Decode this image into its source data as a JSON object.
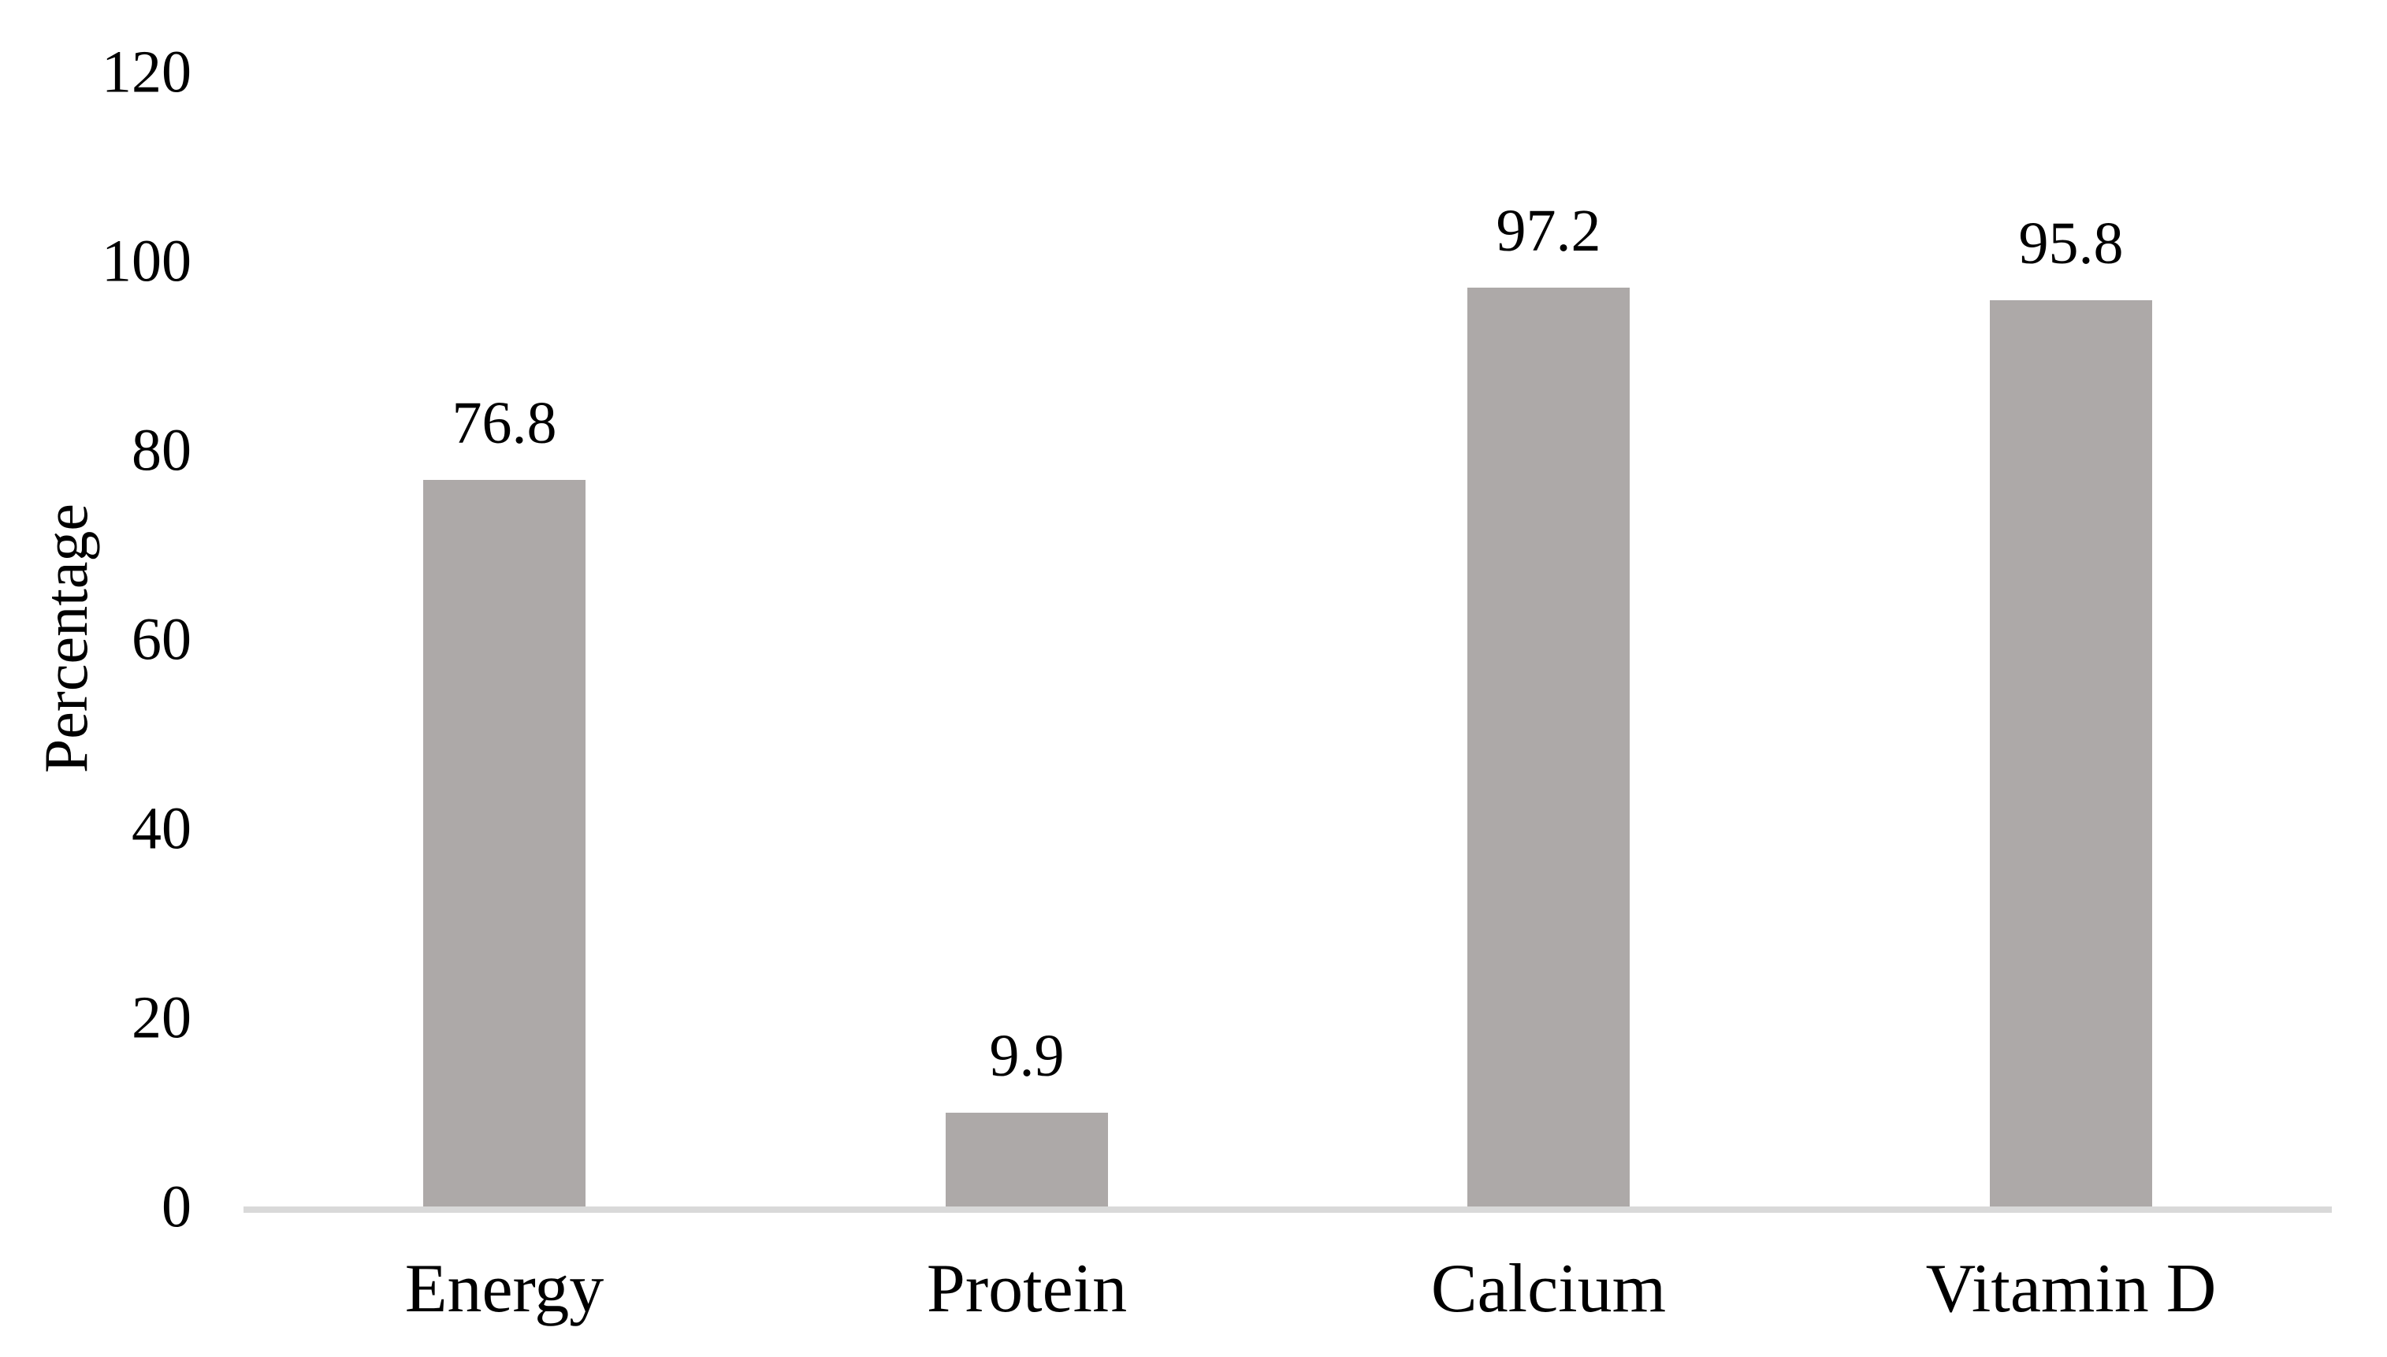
{
  "chart_data": {
    "type": "bar",
    "title": "",
    "categories": [
      "Energy",
      "Protein",
      "Calcium",
      "Vitamin D"
    ],
    "values": [
      76.8,
      9.9,
      97.2,
      95.8
    ],
    "data_labels": [
      "76.8",
      "9.9",
      "97.2",
      "95.8"
    ],
    "series": [
      {
        "name": "Percentage",
        "values": [
          76.8,
          9.9,
          97.2,
          95.8
        ]
      }
    ],
    "xlabel": "",
    "ylabel": "Percentage",
    "ylim": [
      0,
      120
    ],
    "yticks": [
      0,
      20,
      40,
      60,
      80,
      100,
      120
    ],
    "ytick_step": 20,
    "grid": false,
    "legend": "none",
    "orientation": "vertical",
    "bar_color": "#ADA9A8",
    "axis_line_color": "#D9D9D9",
    "text_color": "#000000",
    "background": "#FFFFFF"
  }
}
